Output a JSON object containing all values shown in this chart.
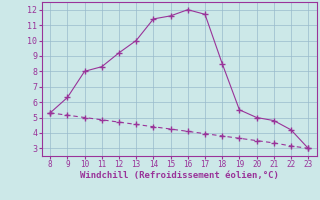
{
  "x_main": [
    8,
    9,
    10,
    11,
    12,
    13,
    14,
    15,
    16,
    17,
    18,
    19,
    20,
    21,
    22,
    23
  ],
  "y_main": [
    5.3,
    6.3,
    8.0,
    8.3,
    9.2,
    10.0,
    11.4,
    11.6,
    12.0,
    11.7,
    8.5,
    5.5,
    5.0,
    4.8,
    4.2,
    3.0
  ],
  "x_dash": [
    8,
    9,
    10,
    11,
    12,
    13,
    14,
    15,
    16,
    17,
    18,
    19,
    20,
    21,
    22,
    23
  ],
  "y_dash": [
    5.3,
    5.15,
    5.0,
    4.85,
    4.7,
    4.55,
    4.4,
    4.25,
    4.1,
    3.95,
    3.8,
    3.65,
    3.5,
    3.35,
    3.15,
    3.0
  ],
  "line_color": "#993399",
  "bg_color": "#cce8e8",
  "grid_color": "#99bbcc",
  "xlabel": "Windchill (Refroidissement éolien,°C)",
  "xlim": [
    7.5,
    23.5
  ],
  "ylim": [
    2.5,
    12.5
  ],
  "xticks": [
    8,
    9,
    10,
    11,
    12,
    13,
    14,
    15,
    16,
    17,
    18,
    19,
    20,
    21,
    22,
    23
  ],
  "yticks": [
    3,
    4,
    5,
    6,
    7,
    8,
    9,
    10,
    11,
    12
  ]
}
